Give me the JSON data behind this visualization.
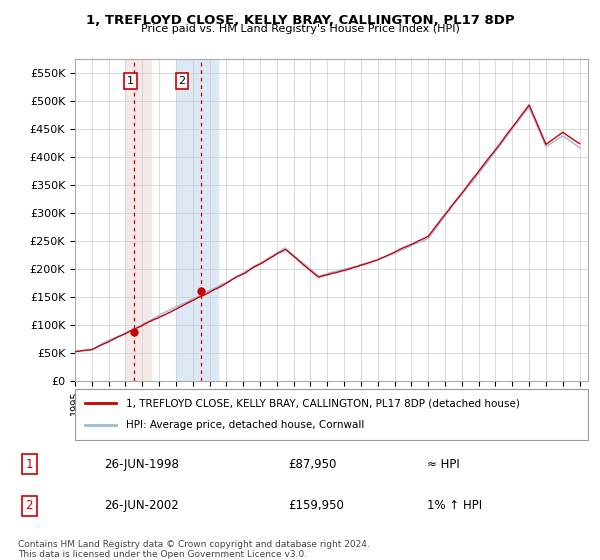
{
  "title_line1": "1, TREFLOYD CLOSE, KELLY BRAY, CALLINGTON, PL17 8DP",
  "title_line2": "Price paid vs. HM Land Registry's House Price Index (HPI)",
  "ylim": [
    0,
    575000
  ],
  "yticks": [
    0,
    50000,
    100000,
    150000,
    200000,
    250000,
    300000,
    350000,
    400000,
    450000,
    500000,
    550000
  ],
  "ytick_labels": [
    "£0",
    "£50K",
    "£100K",
    "£150K",
    "£200K",
    "£250K",
    "£300K",
    "£350K",
    "£400K",
    "£450K",
    "£500K",
    "£550K"
  ],
  "sale1_date": 1998.5,
  "sale1_price": 87950,
  "sale1_label": "1",
  "sale2_date": 2002.5,
  "sale2_price": 159950,
  "sale2_label": "2",
  "sale1_span_start": 1998.0,
  "sale1_span_end": 1999.5,
  "sale2_span_start": 2001.0,
  "sale2_span_end": 2003.5,
  "line_color_price": "#cc0000",
  "line_color_hpi": "#99bbdd",
  "marker_color": "#cc0000",
  "highlight_color_sale1": "#f5e8e8",
  "highlight_color_sale2": "#dde8f5",
  "legend_label_price": "1, TREFLOYD CLOSE, KELLY BRAY, CALLINGTON, PL17 8DP (detached house)",
  "legend_label_hpi": "HPI: Average price, detached house, Cornwall",
  "table_row1": [
    "1",
    "26-JUN-1998",
    "£87,950",
    "≈ HPI"
  ],
  "table_row2": [
    "2",
    "26-JUN-2002",
    "£159,950",
    "1% ↑ HPI"
  ],
  "footnote": "Contains HM Land Registry data © Crown copyright and database right 2024.\nThis data is licensed under the Open Government Licence v3.0.",
  "background_color": "#ffffff",
  "grid_color": "#cccccc",
  "xlim_start": 1995,
  "xlim_end": 2025.5
}
